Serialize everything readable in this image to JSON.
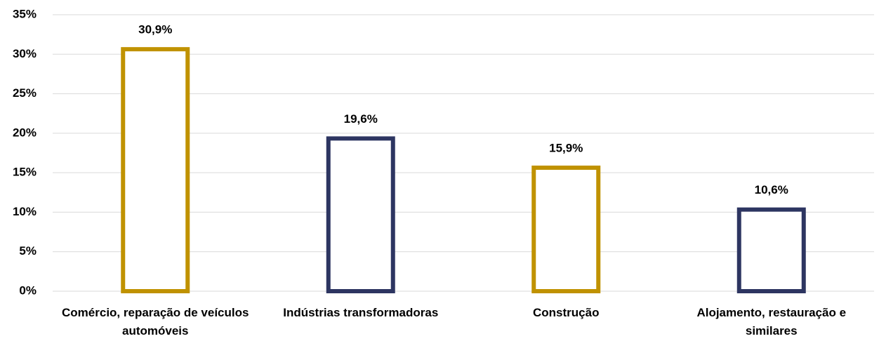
{
  "chart_data": {
    "type": "bar",
    "categories": [
      "Comércio, reparação de veículos automóveis",
      "Indústrias transformadoras",
      "Construção",
      "Alojamento, restauração e similares"
    ],
    "values": [
      30.9,
      19.6,
      15.9,
      10.6
    ],
    "value_labels": [
      "30,9%",
      "19,6%",
      "15,9%",
      "10,6%"
    ],
    "colors": [
      "#c09200",
      "#2d3561",
      "#c09200",
      "#2d3561"
    ],
    "ylim": [
      0,
      35
    ],
    "yticks": [
      {
        "value": 0,
        "label": "0%"
      },
      {
        "value": 5,
        "label": "5%"
      },
      {
        "value": 10,
        "label": "10%"
      },
      {
        "value": 15,
        "label": "15%"
      },
      {
        "value": 20,
        "label": "20%"
      },
      {
        "value": 25,
        "label": "25%"
      },
      {
        "value": 30,
        "label": "30%"
      },
      {
        "value": 35,
        "label": "35%"
      }
    ],
    "grid": true
  }
}
